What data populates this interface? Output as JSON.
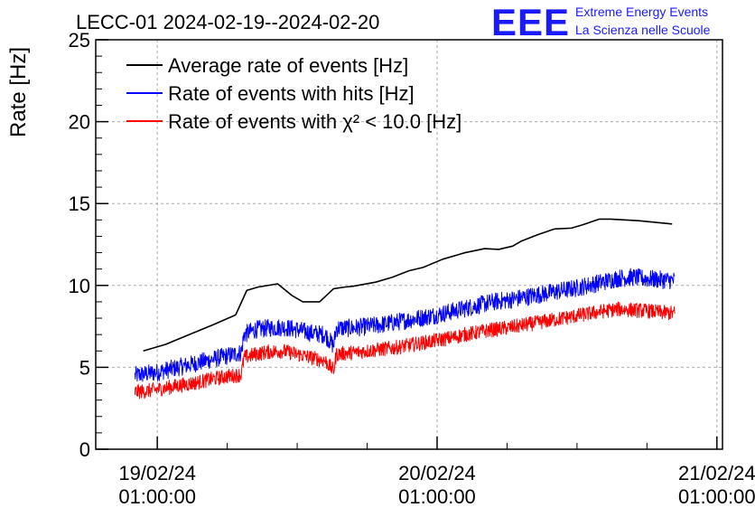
{
  "chart_data": {
    "type": "line",
    "title": "LECC-01 2024-02-19--2024-02-20",
    "logo": {
      "mark": "EEE",
      "line1": "Extreme Energy Events",
      "line2": "La Scienza nelle Scuole"
    },
    "ylabel": "Rate [Hz]",
    "xlabel": "",
    "ylim": [
      0,
      25
    ],
    "y_ticks": [
      {
        "value": 0,
        "label": "0"
      },
      {
        "value": 5,
        "label": "5"
      },
      {
        "value": 10,
        "label": "10"
      },
      {
        "value": 15,
        "label": "15"
      },
      {
        "value": 20,
        "label": "20"
      },
      {
        "value": 25,
        "label": "25"
      }
    ],
    "xlim": [
      -0.22,
      2.02
    ],
    "x_ticks": [
      {
        "value": 0,
        "date": "19/02/24",
        "time": "01:00:00"
      },
      {
        "value": 1,
        "date": "20/02/24",
        "time": "01:00:00"
      },
      {
        "value": 2,
        "date": "21/02/24",
        "time": "01:00:00"
      }
    ],
    "grid": true,
    "legend_position": "top-left",
    "series": [
      {
        "name": "Average rate of events [Hz]",
        "color": "#000000",
        "style": "smooth",
        "x": [
          -0.05,
          0.03,
          0.1,
          0.2,
          0.28,
          0.32,
          0.36,
          0.43,
          0.48,
          0.52,
          0.58,
          0.63,
          0.67,
          0.7,
          0.78,
          0.84,
          0.9,
          0.95,
          1.02,
          1.1,
          1.17,
          1.22,
          1.27,
          1.3,
          1.36,
          1.42,
          1.48,
          1.52,
          1.58,
          1.62,
          1.72,
          1.84
        ],
        "y": [
          6.0,
          6.4,
          6.9,
          7.6,
          8.2,
          9.7,
          9.9,
          10.1,
          9.4,
          9.0,
          9.0,
          9.8,
          9.9,
          9.95,
          10.2,
          10.5,
          10.9,
          11.1,
          11.6,
          12.0,
          12.25,
          12.2,
          12.4,
          12.7,
          13.1,
          13.45,
          13.5,
          13.7,
          14.05,
          14.05,
          13.95,
          13.75
        ]
      },
      {
        "name": "Rate of events with hits [Hz]",
        "color": "#0000ff",
        "style": "noisy",
        "x": [
          -0.08,
          -0.04,
          0.0,
          0.05,
          0.1,
          0.15,
          0.2,
          0.25,
          0.3,
          0.31,
          0.35,
          0.4,
          0.45,
          0.5,
          0.55,
          0.6,
          0.63,
          0.64,
          0.7,
          0.75,
          0.8,
          0.85,
          0.9,
          0.95,
          1.0,
          1.05,
          1.1,
          1.15,
          1.2,
          1.25,
          1.3,
          1.35,
          1.4,
          1.45,
          1.5,
          1.55,
          1.6,
          1.65,
          1.7,
          1.75,
          1.8,
          1.85
        ],
        "y": [
          4.5,
          4.6,
          4.7,
          4.9,
          5.1,
          5.3,
          5.5,
          5.7,
          5.9,
          7.0,
          7.3,
          7.4,
          7.45,
          7.3,
          7.1,
          7.0,
          6.3,
          7.4,
          7.4,
          7.5,
          7.6,
          7.75,
          7.9,
          8.05,
          8.2,
          8.4,
          8.6,
          8.8,
          9.0,
          9.1,
          9.25,
          9.4,
          9.55,
          9.7,
          9.85,
          10.05,
          10.25,
          10.45,
          10.5,
          10.4,
          10.35,
          10.3
        ],
        "noise_amplitude": 0.55
      },
      {
        "name": "Rate of events with χ² < 10.0 [Hz]",
        "color": "#ff0000",
        "style": "noisy",
        "x": [
          -0.08,
          -0.04,
          0.0,
          0.05,
          0.1,
          0.15,
          0.2,
          0.25,
          0.3,
          0.31,
          0.35,
          0.4,
          0.45,
          0.5,
          0.55,
          0.6,
          0.63,
          0.64,
          0.7,
          0.75,
          0.8,
          0.85,
          0.9,
          0.95,
          1.0,
          1.05,
          1.1,
          1.15,
          1.2,
          1.25,
          1.3,
          1.35,
          1.4,
          1.45,
          1.5,
          1.55,
          1.6,
          1.65,
          1.7,
          1.75,
          1.8,
          1.85
        ],
        "y": [
          3.5,
          3.55,
          3.65,
          3.8,
          3.95,
          4.1,
          4.3,
          4.45,
          4.55,
          5.6,
          5.8,
          5.95,
          6.0,
          5.8,
          5.6,
          5.4,
          4.8,
          5.8,
          5.9,
          6.0,
          6.1,
          6.2,
          6.35,
          6.5,
          6.65,
          6.8,
          7.0,
          7.15,
          7.3,
          7.4,
          7.55,
          7.7,
          7.85,
          8.0,
          8.15,
          8.3,
          8.45,
          8.55,
          8.5,
          8.45,
          8.35,
          8.3
        ],
        "noise_amplitude": 0.45
      }
    ]
  }
}
